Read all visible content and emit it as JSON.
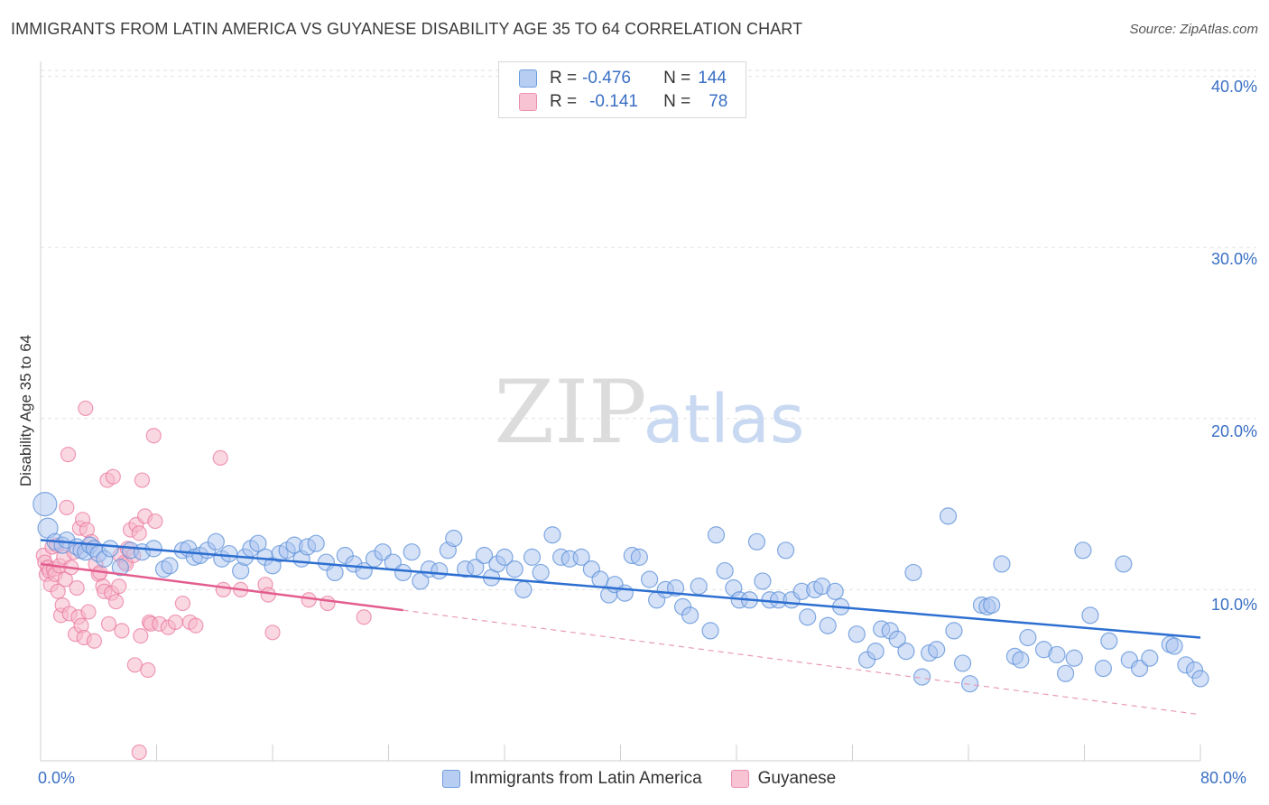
{
  "title": "IMMIGRANTS FROM LATIN AMERICA VS GUYANESE DISABILITY AGE 35 TO 64 CORRELATION CHART",
  "source": "Source: ZipAtlas.com",
  "watermark": {
    "zip": "ZIP",
    "atlas": "atlas"
  },
  "legend": {
    "r_label": "R =",
    "n_label": "N =",
    "series1": {
      "r": "-0.476",
      "n": "144"
    },
    "series2": {
      "r": "-0.141",
      "n": "78"
    }
  },
  "colors": {
    "blue": "#5b8fd8",
    "blue_fill": "#a9c4ef",
    "pink": "#e9749c",
    "pink_fill": "#f6b8cb",
    "axis_text": "#3a6fc4"
  },
  "chart_data": {
    "type": "scatter",
    "title": "IMMIGRANTS FROM LATIN AMERICA VS GUYANESE DISABILITY AGE 35 TO 64 CORRELATION CHART",
    "xlabel": "",
    "ylabel": "Disability Age 35 to 64",
    "xlim": [
      0,
      80
    ],
    "ylim": [
      0,
      41
    ],
    "x_tick_labels": [
      "0.0%",
      "80.0%"
    ],
    "y_ticks": [
      10,
      20,
      30,
      40
    ],
    "y_tick_labels": [
      "10.0%",
      "20.0%",
      "30.0%",
      "40.0%"
    ],
    "grid": true,
    "legend_position": "top-center",
    "series": [
      {
        "name": "Immigrants from Latin America",
        "color": "#5b8fd8",
        "trend": {
          "x0": 0,
          "y0": 12.9,
          "x1": 80,
          "y1": 7.2
        },
        "points": [
          [
            0.3,
            15.0
          ],
          [
            0.5,
            13.6
          ],
          [
            1.0,
            12.8
          ],
          [
            1.5,
            12.6
          ],
          [
            1.8,
            12.9
          ],
          [
            2.5,
            12.5
          ],
          [
            2.8,
            12.3
          ],
          [
            3.1,
            12.2
          ],
          [
            3.4,
            12.6
          ],
          [
            3.7,
            12.4
          ],
          [
            4.0,
            12.1
          ],
          [
            4.4,
            11.8
          ],
          [
            4.8,
            12.4
          ],
          [
            5.5,
            11.3
          ],
          [
            6.2,
            12.3
          ],
          [
            7.0,
            12.2
          ],
          [
            7.8,
            12.4
          ],
          [
            8.5,
            11.2
          ],
          [
            8.9,
            11.4
          ],
          [
            9.8,
            12.3
          ],
          [
            10.2,
            12.4
          ],
          [
            10.6,
            11.9
          ],
          [
            11.0,
            12.0
          ],
          [
            11.5,
            12.3
          ],
          [
            12.1,
            12.8
          ],
          [
            12.5,
            11.8
          ],
          [
            13.0,
            12.1
          ],
          [
            13.8,
            11.1
          ],
          [
            14.1,
            11.9
          ],
          [
            14.5,
            12.4
          ],
          [
            15.0,
            12.7
          ],
          [
            15.5,
            11.9
          ],
          [
            16.0,
            11.4
          ],
          [
            16.5,
            12.1
          ],
          [
            17.0,
            12.3
          ],
          [
            17.5,
            12.6
          ],
          [
            18.0,
            11.8
          ],
          [
            18.4,
            12.5
          ],
          [
            19.0,
            12.7
          ],
          [
            19.7,
            11.6
          ],
          [
            20.3,
            11.0
          ],
          [
            21.0,
            12.0
          ],
          [
            21.6,
            11.5
          ],
          [
            22.3,
            11.1
          ],
          [
            23.0,
            11.8
          ],
          [
            23.6,
            12.2
          ],
          [
            24.3,
            11.6
          ],
          [
            25.0,
            11.0
          ],
          [
            25.6,
            12.2
          ],
          [
            26.2,
            10.5
          ],
          [
            26.8,
            11.2
          ],
          [
            27.5,
            11.1
          ],
          [
            28.1,
            12.3
          ],
          [
            28.5,
            13.0
          ],
          [
            29.3,
            11.2
          ],
          [
            30.0,
            11.3
          ],
          [
            30.6,
            12.0
          ],
          [
            31.1,
            10.7
          ],
          [
            31.5,
            11.5
          ],
          [
            32.0,
            11.9
          ],
          [
            32.7,
            11.2
          ],
          [
            33.3,
            10.0
          ],
          [
            33.9,
            11.9
          ],
          [
            34.5,
            11.0
          ],
          [
            35.3,
            13.2
          ],
          [
            35.9,
            11.9
          ],
          [
            36.5,
            11.8
          ],
          [
            37.3,
            11.9
          ],
          [
            38.0,
            11.2
          ],
          [
            38.6,
            10.6
          ],
          [
            39.2,
            9.7
          ],
          [
            39.6,
            10.3
          ],
          [
            40.3,
            9.8
          ],
          [
            40.8,
            12.0
          ],
          [
            41.3,
            11.9
          ],
          [
            42.0,
            10.6
          ],
          [
            42.5,
            9.4
          ],
          [
            43.1,
            10.0
          ],
          [
            43.8,
            10.1
          ],
          [
            44.3,
            9.0
          ],
          [
            44.8,
            8.5
          ],
          [
            45.4,
            10.2
          ],
          [
            46.2,
            7.6
          ],
          [
            46.6,
            13.2
          ],
          [
            47.2,
            11.1
          ],
          [
            47.8,
            10.1
          ],
          [
            48.2,
            9.4
          ],
          [
            48.9,
            9.4
          ],
          [
            49.4,
            12.8
          ],
          [
            49.8,
            10.5
          ],
          [
            50.3,
            9.4
          ],
          [
            50.9,
            9.4
          ],
          [
            51.4,
            12.3
          ],
          [
            51.8,
            9.4
          ],
          [
            52.5,
            9.9
          ],
          [
            52.9,
            8.4
          ],
          [
            53.4,
            10.0
          ],
          [
            53.9,
            10.2
          ],
          [
            54.3,
            7.9
          ],
          [
            54.8,
            9.9
          ],
          [
            55.2,
            9.0
          ],
          [
            56.3,
            7.4
          ],
          [
            57.0,
            5.9
          ],
          [
            57.6,
            6.4
          ],
          [
            58.0,
            7.7
          ],
          [
            58.6,
            7.6
          ],
          [
            59.1,
            7.1
          ],
          [
            59.7,
            6.4
          ],
          [
            60.2,
            11.0
          ],
          [
            60.8,
            4.9
          ],
          [
            61.3,
            6.3
          ],
          [
            61.8,
            6.5
          ],
          [
            62.6,
            14.3
          ],
          [
            63.0,
            7.6
          ],
          [
            63.6,
            5.7
          ],
          [
            64.1,
            4.5
          ],
          [
            64.9,
            9.1
          ],
          [
            65.3,
            9.0
          ],
          [
            65.6,
            9.1
          ],
          [
            66.3,
            11.5
          ],
          [
            67.2,
            6.1
          ],
          [
            67.6,
            5.9
          ],
          [
            68.1,
            7.2
          ],
          [
            69.2,
            6.5
          ],
          [
            70.1,
            6.2
          ],
          [
            70.7,
            5.1
          ],
          [
            71.3,
            6.0
          ],
          [
            71.9,
            12.3
          ],
          [
            72.4,
            8.5
          ],
          [
            73.3,
            5.4
          ],
          [
            73.7,
            7.0
          ],
          [
            74.7,
            11.5
          ],
          [
            75.1,
            5.9
          ],
          [
            75.8,
            5.4
          ],
          [
            76.5,
            6.0
          ],
          [
            77.9,
            6.8
          ],
          [
            78.2,
            6.7
          ],
          [
            79.0,
            5.6
          ],
          [
            79.6,
            5.3
          ],
          [
            80.0,
            4.8
          ]
        ]
      },
      {
        "name": "Guyanese",
        "color": "#e9749c",
        "trend": {
          "x0": 0,
          "y0": 11.5,
          "x1": 25,
          "y1": 8.8,
          "x2": 80,
          "y2": 2.7
        },
        "points": [
          [
            0.2,
            12.0
          ],
          [
            0.3,
            11.6
          ],
          [
            0.4,
            10.9
          ],
          [
            0.5,
            11.3
          ],
          [
            0.6,
            11.1
          ],
          [
            0.7,
            10.3
          ],
          [
            0.8,
            12.5
          ],
          [
            0.9,
            11.2
          ],
          [
            1.0,
            10.9
          ],
          [
            1.1,
            12.6
          ],
          [
            1.2,
            9.9
          ],
          [
            1.3,
            11.4
          ],
          [
            1.4,
            8.5
          ],
          [
            1.5,
            9.1
          ],
          [
            1.6,
            11.9
          ],
          [
            1.7,
            10.6
          ],
          [
            1.8,
            14.8
          ],
          [
            1.9,
            17.9
          ],
          [
            2.0,
            8.6
          ],
          [
            2.1,
            11.3
          ],
          [
            2.3,
            12.2
          ],
          [
            2.4,
            7.4
          ],
          [
            2.5,
            10.1
          ],
          [
            2.6,
            8.4
          ],
          [
            2.7,
            13.6
          ],
          [
            2.8,
            7.9
          ],
          [
            2.9,
            14.1
          ],
          [
            3.0,
            7.2
          ],
          [
            3.1,
            20.6
          ],
          [
            3.2,
            13.5
          ],
          [
            3.3,
            8.7
          ],
          [
            3.5,
            12.8
          ],
          [
            3.7,
            7.0
          ],
          [
            3.8,
            11.5
          ],
          [
            4.0,
            10.9
          ],
          [
            4.1,
            11.0
          ],
          [
            4.3,
            10.2
          ],
          [
            4.4,
            9.9
          ],
          [
            4.6,
            16.4
          ],
          [
            4.7,
            8.0
          ],
          [
            4.9,
            9.8
          ],
          [
            5.0,
            16.6
          ],
          [
            5.2,
            9.3
          ],
          [
            5.4,
            10.2
          ],
          [
            5.5,
            12.0
          ],
          [
            5.6,
            7.6
          ],
          [
            5.8,
            11.6
          ],
          [
            5.9,
            11.5
          ],
          [
            6.0,
            12.4
          ],
          [
            6.2,
            13.5
          ],
          [
            6.4,
            12.0
          ],
          [
            6.5,
            5.6
          ],
          [
            6.6,
            13.8
          ],
          [
            6.8,
            13.3
          ],
          [
            6.9,
            7.3
          ],
          [
            7.0,
            16.4
          ],
          [
            7.2,
            14.3
          ],
          [
            7.4,
            5.3
          ],
          [
            7.5,
            8.1
          ],
          [
            7.6,
            8.0
          ],
          [
            7.8,
            19.0
          ],
          [
            7.9,
            14.0
          ],
          [
            8.2,
            8.0
          ],
          [
            8.8,
            7.8
          ],
          [
            9.3,
            8.1
          ],
          [
            9.8,
            9.2
          ],
          [
            10.3,
            8.1
          ],
          [
            10.7,
            7.9
          ],
          [
            12.4,
            17.7
          ],
          [
            12.6,
            10.0
          ],
          [
            13.8,
            10.0
          ],
          [
            15.5,
            10.3
          ],
          [
            15.7,
            9.7
          ],
          [
            16.0,
            7.5
          ],
          [
            18.5,
            9.4
          ],
          [
            19.8,
            9.2
          ],
          [
            22.3,
            8.4
          ],
          [
            6.8,
            0.5
          ]
        ]
      }
    ]
  },
  "bottom_legend": [
    {
      "label": "Immigrants from Latin America"
    },
    {
      "label": "Guyanese"
    }
  ]
}
